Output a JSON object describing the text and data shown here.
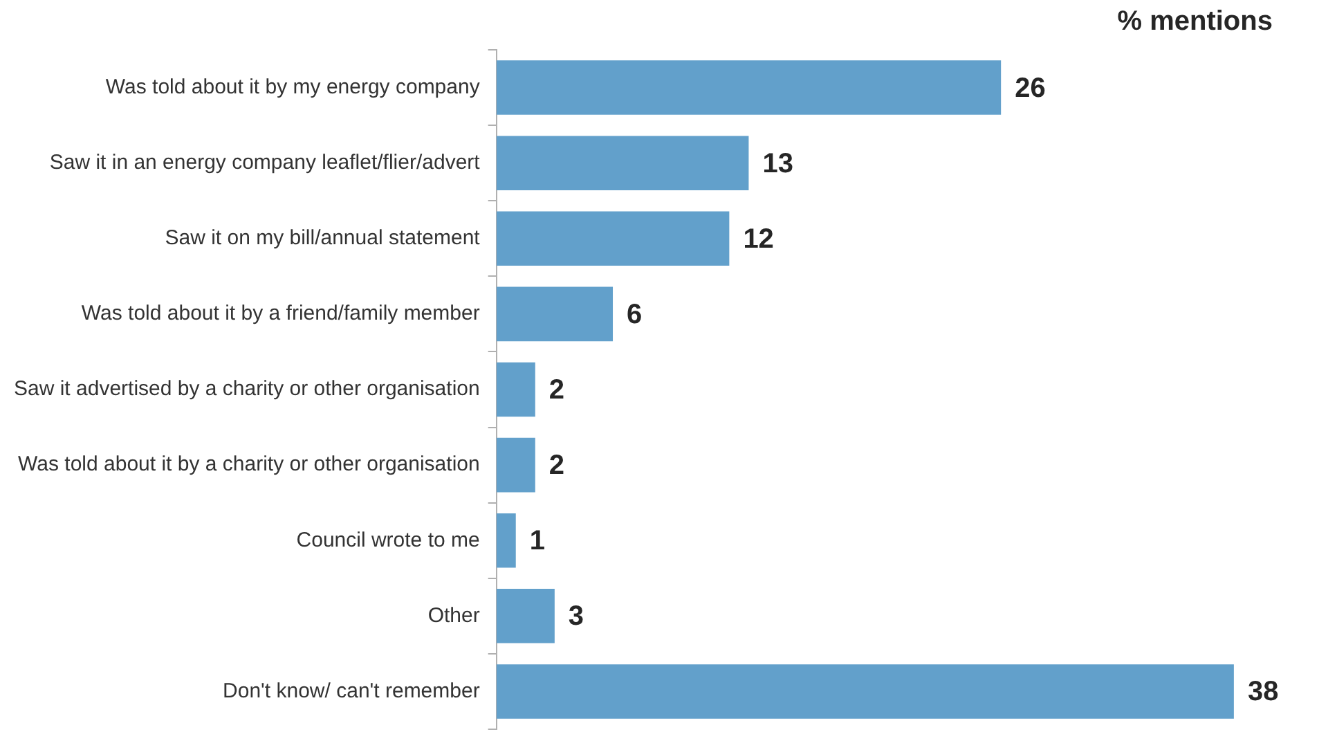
{
  "chart_data": {
    "type": "bar",
    "orientation": "horizontal",
    "title": "% mentions",
    "categories": [
      "Was told about it by my energy company",
      "Saw it in an energy company leaflet/flier/advert",
      "Saw it on my bill/annual statement",
      "Was told about it by a friend/family member",
      "Saw it advertised by a charity or other organisation",
      "Was told about it by a charity or other organisation",
      "Council wrote to me",
      "Other",
      "Don't know/ can't remember"
    ],
    "values": [
      26,
      13,
      12,
      6,
      2,
      2,
      1,
      3,
      38
    ],
    "color": "#62a0cb",
    "data_labels": true,
    "legend": false
  }
}
